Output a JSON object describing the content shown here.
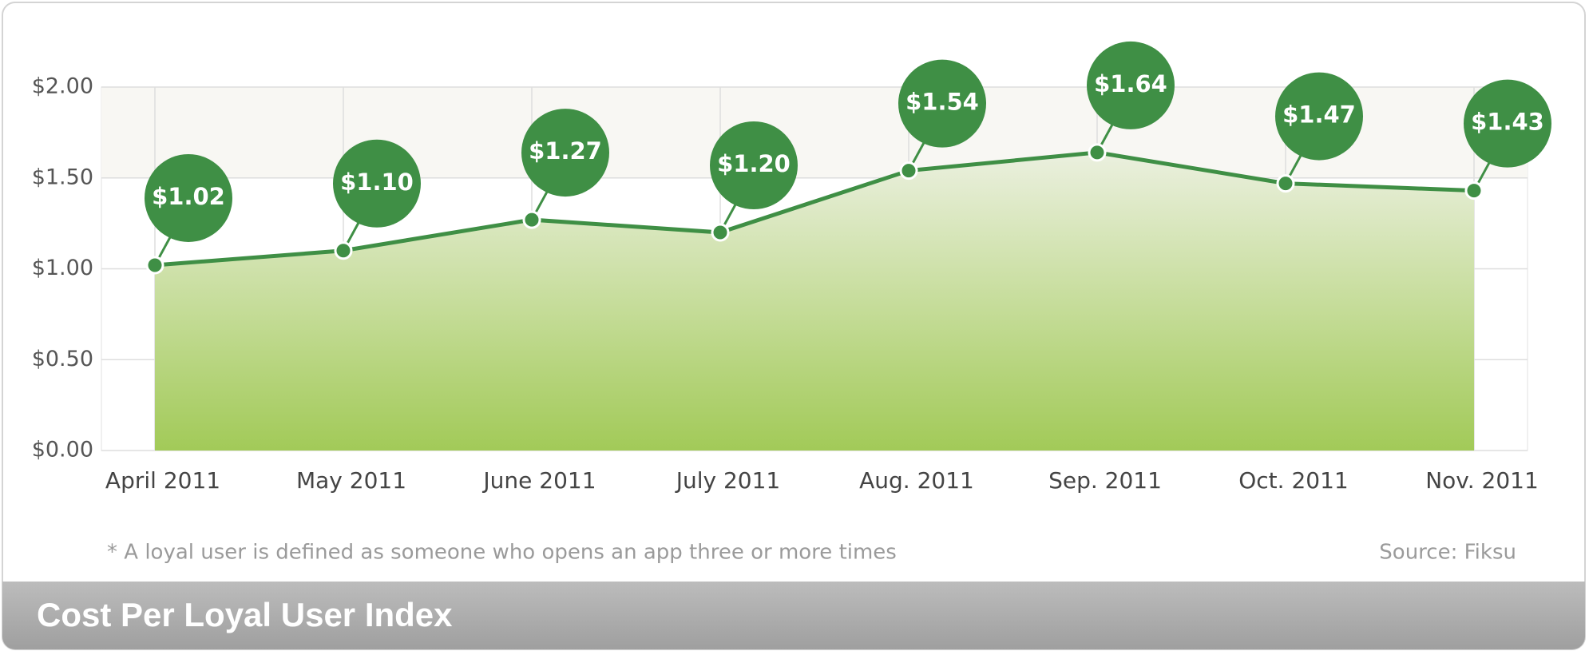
{
  "chart_data": {
    "type": "area",
    "title": "Cost Per Loyal User Index",
    "footnote": "* A loyal user is defined as someone who opens an app three or more times",
    "source": "Source: Fiksu",
    "categories": [
      "April 2011",
      "May 2011",
      "June 2011",
      "July 2011",
      "Aug. 2011",
      "Sep. 2011",
      "Oct. 2011",
      "Nov. 2011"
    ],
    "values": [
      1.02,
      1.1,
      1.27,
      1.2,
      1.54,
      1.64,
      1.47,
      1.43
    ],
    "value_labels": [
      "$1.02",
      "$1.10",
      "$1.27",
      "$1.20",
      "$1.54",
      "$1.64",
      "$1.47",
      "$1.43"
    ],
    "color": "#3f8f45",
    "ylim": [
      0,
      2
    ],
    "yticks": [
      {
        "value": 0,
        "label": "$0.00"
      },
      {
        "value": 0.5,
        "label": "$0.50"
      },
      {
        "value": 1,
        "label": "$1.00"
      },
      {
        "value": 1.5,
        "label": "$1.50"
      },
      {
        "value": 2,
        "label": "$2.00"
      }
    ],
    "grid": true
  }
}
